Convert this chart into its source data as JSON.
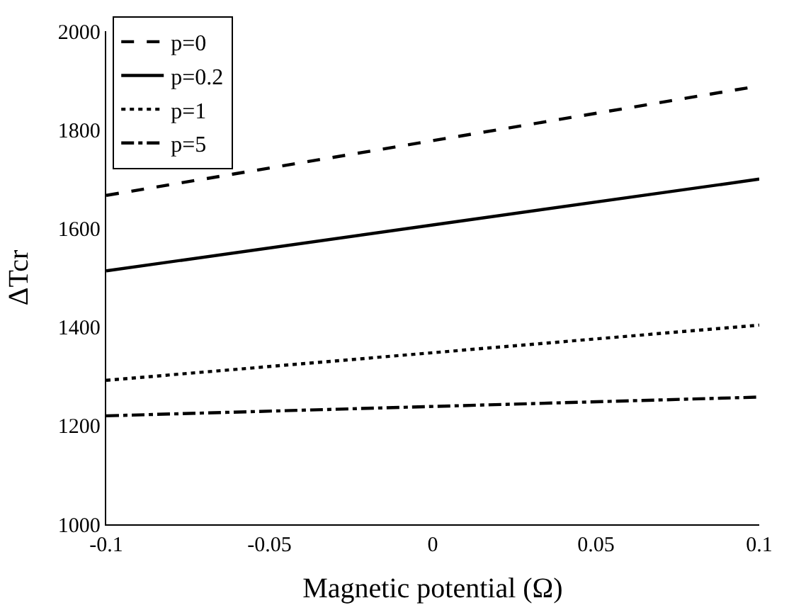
{
  "chart_data": {
    "type": "line",
    "xlabel": "Magnetic potential (Ω)",
    "ylabel": "ΔTcr",
    "x": [
      -0.1,
      0,
      0.1
    ],
    "series": [
      {
        "name": "p=0",
        "color": "#000000",
        "line_style": "dashed",
        "values": [
          1667,
          1778,
          1889
        ]
      },
      {
        "name": "p=0.2",
        "color": "#000000",
        "line_style": "solid",
        "values": [
          1514,
          1607,
          1700
        ]
      },
      {
        "name": "p=1",
        "color": "#000000",
        "line_style": "dotted",
        "values": [
          1292,
          1348,
          1404
        ]
      },
      {
        "name": "p=5",
        "color": "#000000",
        "line_style": "dashdot",
        "values": [
          1220,
          1239,
          1258
        ]
      }
    ],
    "xlim": [
      -0.1,
      0.1
    ],
    "xticks": [
      -0.1,
      -0.05,
      0,
      0.05,
      0.1
    ],
    "ylim": [
      1000,
      2000
    ],
    "yticks": [
      1000,
      1200,
      1400,
      1600,
      1800,
      2000
    ],
    "legend": "top left",
    "marker": "none"
  }
}
